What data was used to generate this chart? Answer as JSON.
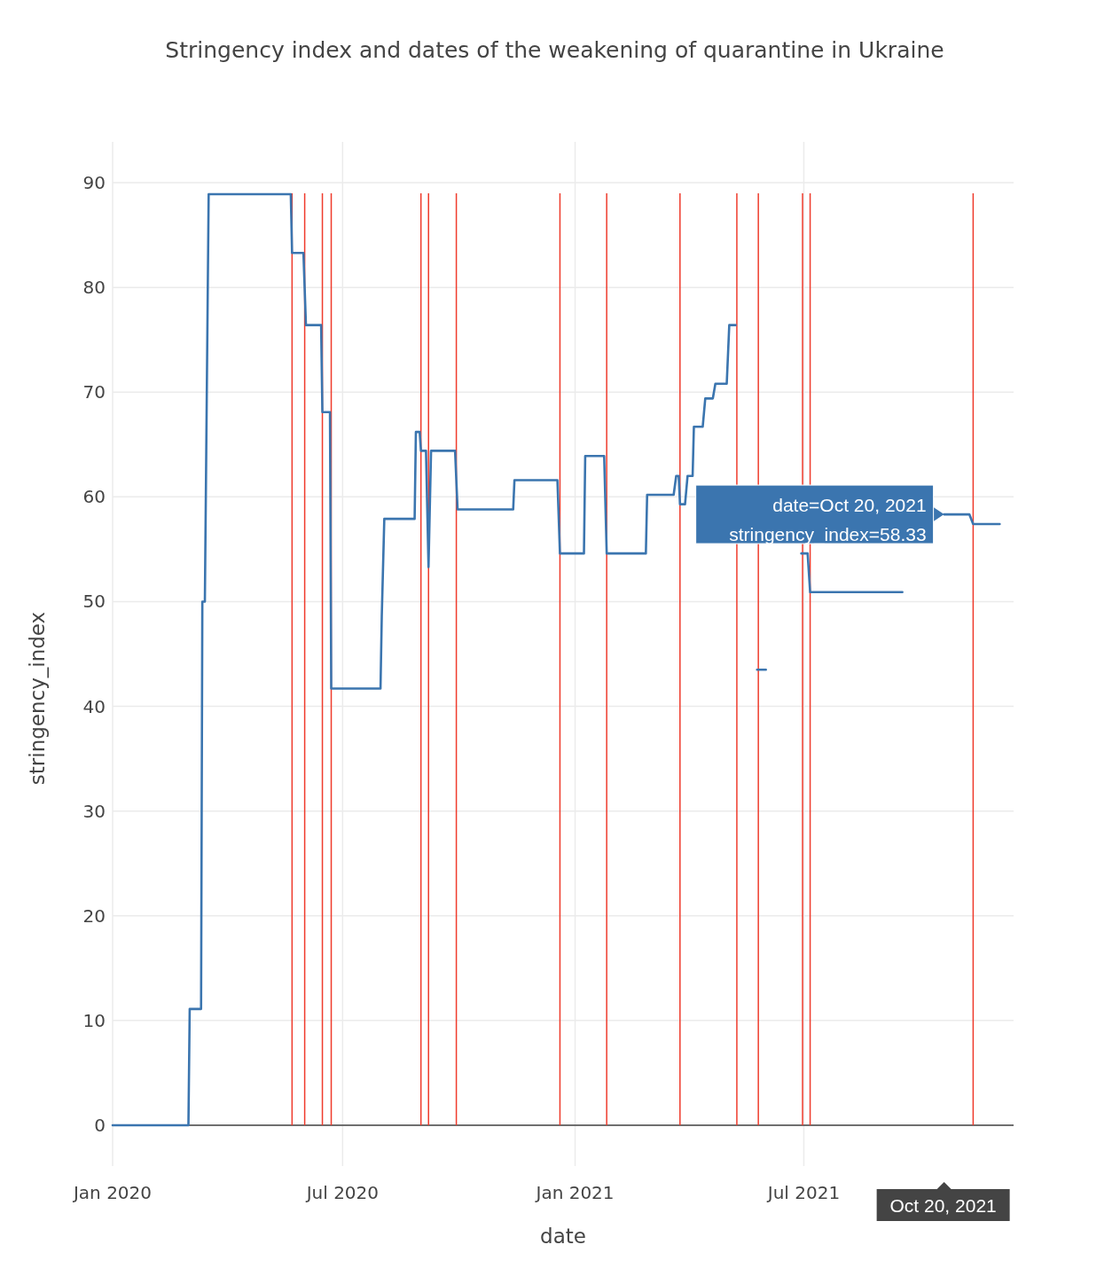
{
  "chart_data": {
    "type": "line",
    "title": "Stringency index and dates of the weakening of quarantine in Ukraine",
    "xlabel": "date",
    "ylabel": "stringency_index",
    "xlim": [
      "2020-01-01",
      "2021-12-14"
    ],
    "xticks": [
      {
        "value": "2020-01-01",
        "label": "Jan 2020"
      },
      {
        "value": "2020-07-01",
        "label": "Jul 2020"
      },
      {
        "value": "2021-01-01",
        "label": "Jan 2021"
      },
      {
        "value": "2021-07-01",
        "label": "Jul 2021"
      }
    ],
    "ylim": [
      -3.9,
      93.9
    ],
    "yticks": [
      0,
      10,
      20,
      30,
      40,
      50,
      60,
      70,
      80,
      90
    ],
    "grid": true,
    "series": [
      {
        "color": "#3b75af",
        "x": [
          "2020-01-01",
          "2020-03-01",
          "2020-03-02",
          "2020-03-11",
          "2020-03-12",
          "2020-03-14",
          "2020-03-17",
          "2020-05-21",
          "2020-05-22",
          "2020-05-31",
          "2020-06-02",
          "2020-06-14",
          "2020-06-15",
          "2020-06-21",
          "2020-06-22",
          "2020-07-31",
          "2020-08-01",
          "2020-08-03",
          "2020-08-27",
          "2020-08-28",
          "2020-08-31",
          "2020-09-01",
          "2020-09-05",
          "2020-09-07",
          "2020-09-09",
          "2020-09-28",
          "2020-09-30",
          "2020-11-13",
          "2020-11-14",
          "2020-12-18",
          "2020-12-20",
          "2021-01-08",
          "2021-01-09",
          "2021-01-24",
          "2021-01-26",
          "2021-02-26",
          "2021-02-27",
          "2021-03-20",
          "2021-03-22",
          "2021-03-24",
          "2021-03-25",
          "2021-03-29",
          "2021-03-31",
          "2021-04-04",
          "2021-04-05",
          "2021-04-12",
          "2021-04-14",
          "2021-04-20",
          "2021-04-22",
          "2021-05-01",
          "2021-05-03",
          "2021-05-08",
          "2021-05-15",
          "2021-05-25",
          "2021-06-01",
          "2021-06-15",
          "2021-06-29",
          "2021-07-04",
          "2021-07-06",
          "2021-09-17",
          "2021-10-01",
          "2021-10-20",
          "2021-11-09",
          "2021-11-12",
          "2021-12-03"
        ],
        "values": [
          0,
          0,
          11.1,
          11.1,
          50,
          50,
          88.9,
          88.9,
          83.3,
          83.3,
          76.4,
          76.4,
          68.1,
          68.1,
          41.7,
          41.7,
          48.6,
          57.9,
          57.9,
          66.2,
          66.2,
          64.4,
          64.4,
          53.3,
          64.4,
          64.4,
          58.8,
          58.8,
          61.6,
          61.6,
          54.6,
          54.6,
          63.9,
          63.9,
          54.6,
          54.6,
          60.2,
          60.2,
          62,
          62,
          59.3,
          59.3,
          62,
          62,
          66.7,
          66.7,
          69.4,
          69.4,
          70.8,
          70.8,
          76.4,
          76.4,
          null,
          43.5,
          43.5,
          null,
          54.6,
          54.6,
          50.9,
          50.9,
          null,
          58.33,
          58.33,
          57.4,
          57.4
        ]
      }
    ],
    "ref_lines": [
      {
        "axis": "x",
        "value": "2020-05-22",
        "color": "#ef3b2c"
      },
      {
        "axis": "x",
        "value": "2020-06-01",
        "color": "#ef3b2c"
      },
      {
        "axis": "x",
        "value": "2020-06-15",
        "color": "#ef3b2c"
      },
      {
        "axis": "x",
        "value": "2020-06-22",
        "color": "#ef3b2c"
      },
      {
        "axis": "x",
        "value": "2020-09-01",
        "color": "#ef3b2c"
      },
      {
        "axis": "x",
        "value": "2020-09-07",
        "color": "#ef3b2c"
      },
      {
        "axis": "x",
        "value": "2020-09-29",
        "color": "#ef3b2c"
      },
      {
        "axis": "x",
        "value": "2020-12-20",
        "color": "#ef3b2c"
      },
      {
        "axis": "x",
        "value": "2021-01-26",
        "color": "#ef3b2c"
      },
      {
        "axis": "x",
        "value": "2021-03-25",
        "color": "#ef3b2c"
      },
      {
        "axis": "x",
        "value": "2021-05-09",
        "color": "#ef3b2c"
      },
      {
        "axis": "x",
        "value": "2021-05-26",
        "color": "#ef3b2c"
      },
      {
        "axis": "x",
        "value": "2021-06-30",
        "color": "#ef3b2c"
      },
      {
        "axis": "x",
        "value": "2021-07-06",
        "color": "#ef3b2c"
      },
      {
        "axis": "x",
        "value": "2021-11-12",
        "color": "#ef3b2c"
      }
    ],
    "annotations": [
      {
        "text": "date=Oct 20, 2021\nstringency_index=58.33",
        "x": "2021-10-20",
        "y": 58.33
      },
      "Oct 20, 2021"
    ]
  }
}
